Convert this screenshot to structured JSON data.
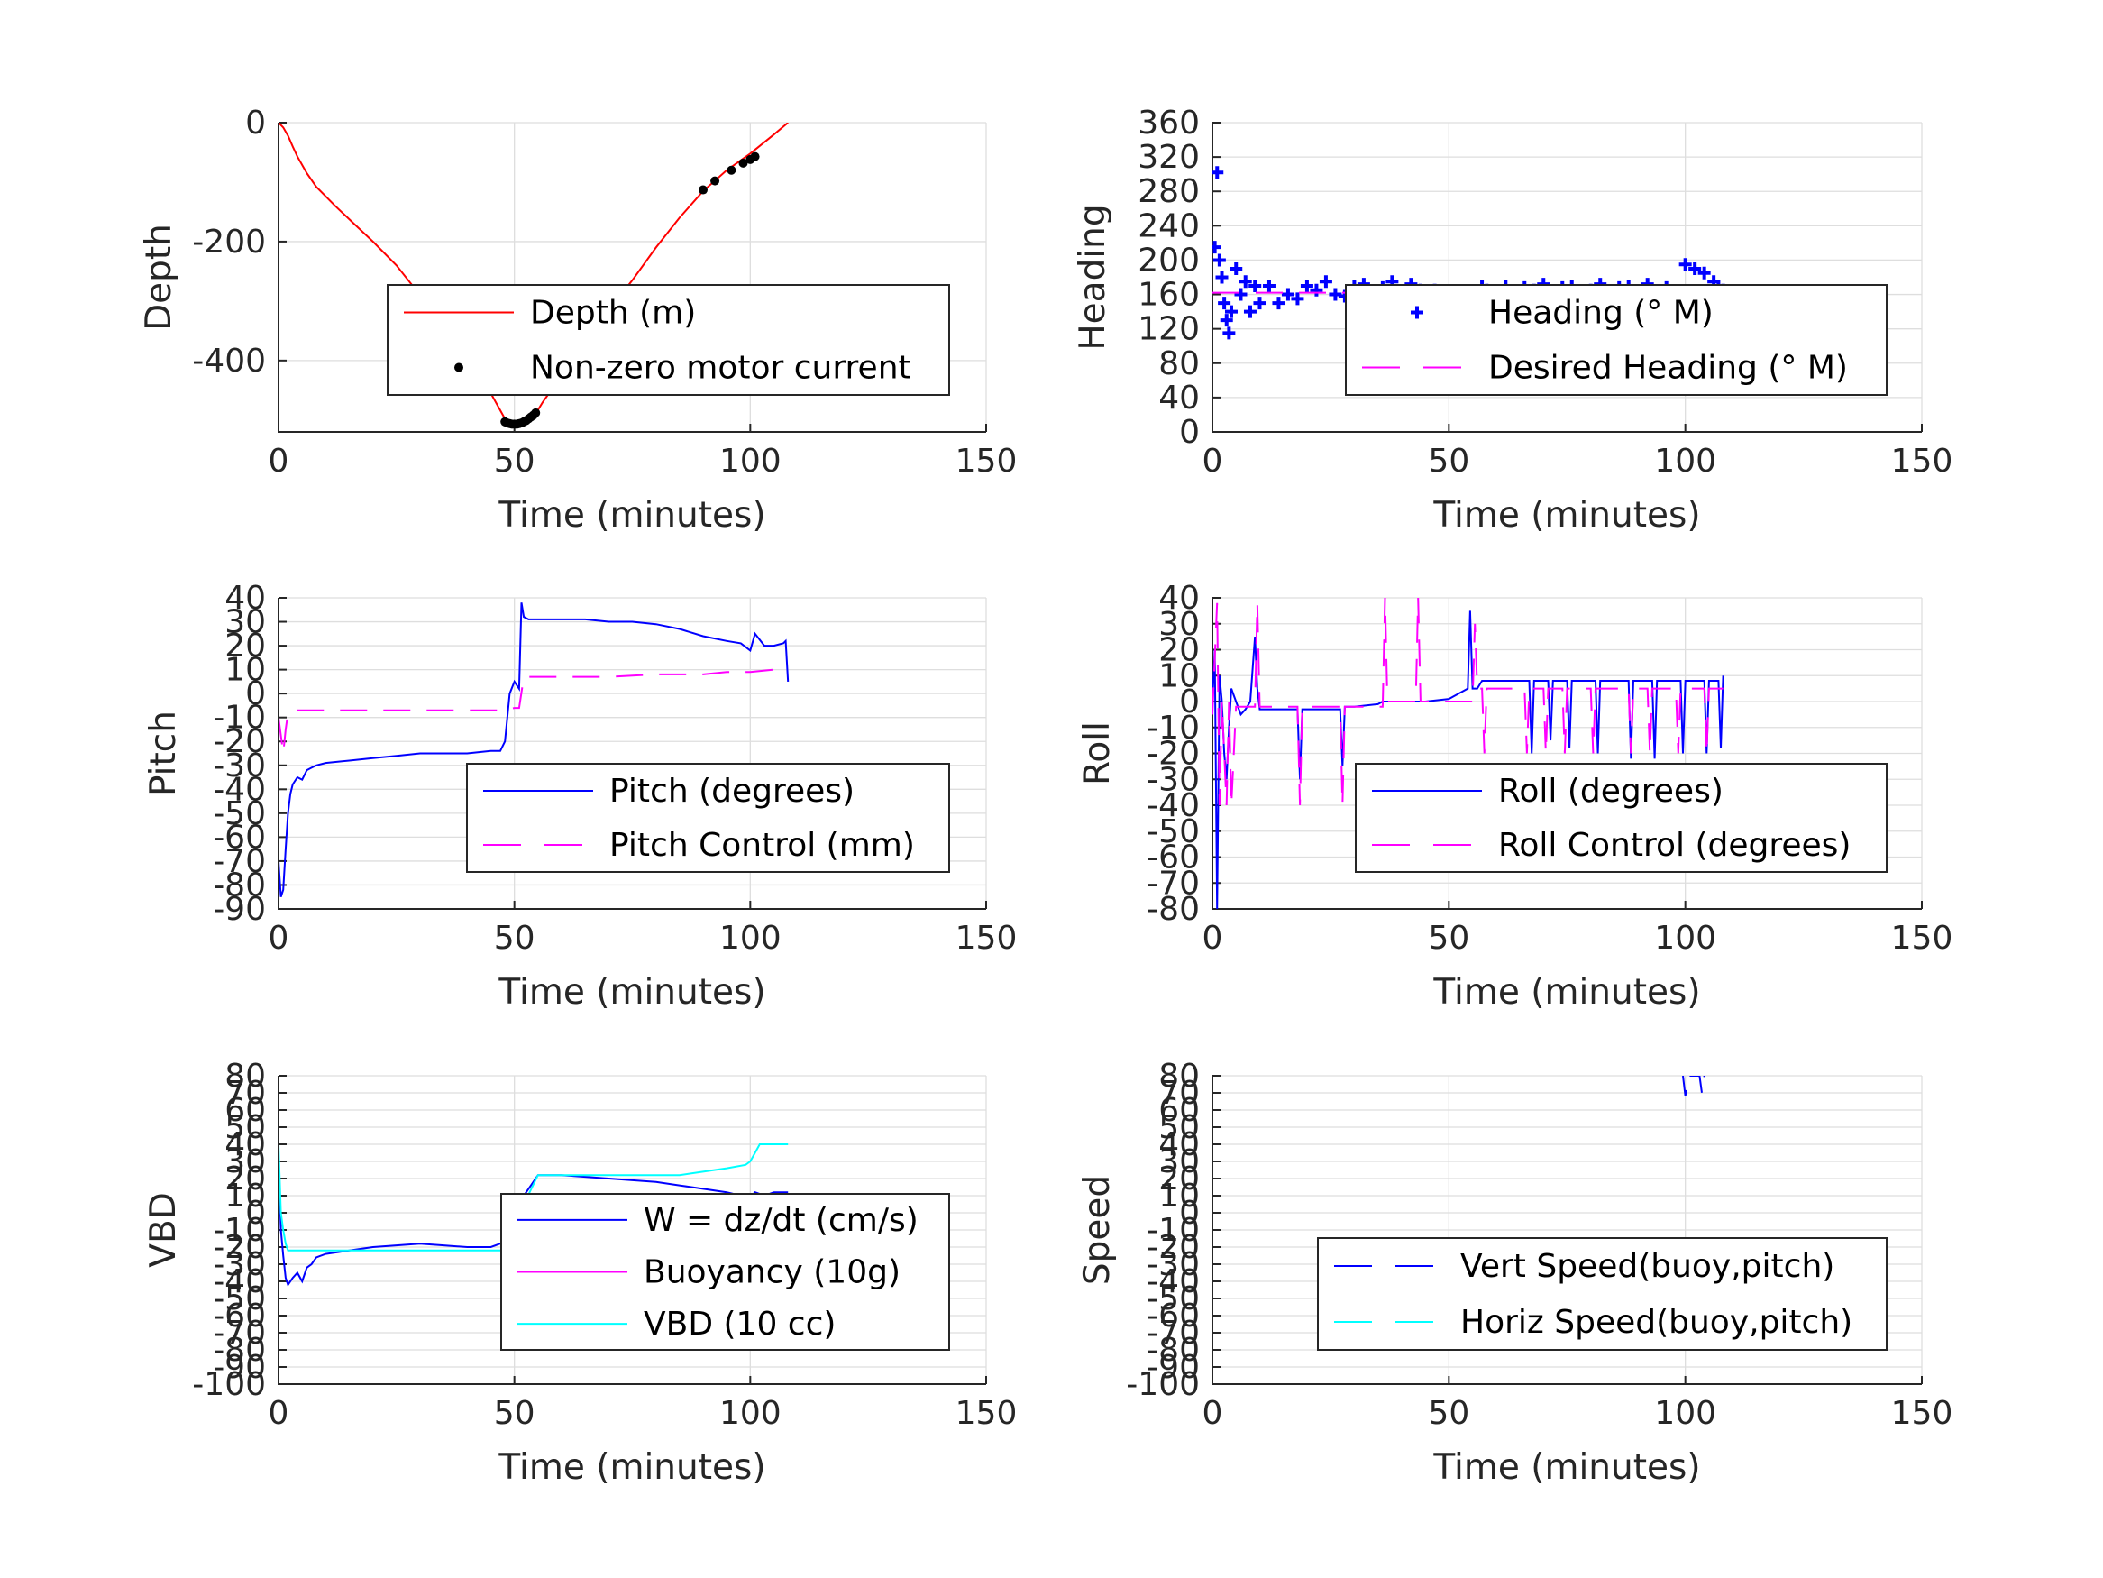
{
  "chart_data": [
    {
      "id": "depth",
      "type": "line",
      "xlabel": "Time (minutes)",
      "ylabel": "Depth",
      "xlim": [
        0,
        150
      ],
      "ylim": [
        -520,
        0
      ],
      "xticks": [
        0,
        50,
        100,
        150
      ],
      "yticks": [
        -400,
        -200,
        0
      ],
      "grid": true,
      "legend_position": "middle-right",
      "series": [
        {
          "name": "Depth (m)",
          "color": "#ff0000",
          "style": "solid",
          "x": [
            0,
            1,
            2,
            3,
            4,
            6,
            8,
            12,
            16,
            20,
            25,
            30,
            35,
            40,
            45,
            48,
            50,
            52,
            54,
            56,
            60,
            65,
            70,
            75,
            80,
            85,
            90,
            95,
            100,
            105,
            108
          ],
          "y": [
            0,
            -8,
            -22,
            -40,
            -57,
            -85,
            -108,
            -140,
            -170,
            -200,
            -240,
            -290,
            -345,
            -400,
            -455,
            -498,
            -507,
            -505,
            -496,
            -470,
            -425,
            -370,
            -315,
            -265,
            -210,
            -160,
            -115,
            -80,
            -52,
            -20,
            0
          ]
        },
        {
          "name": "Non-zero motor current",
          "color": "#000000",
          "style": "markers",
          "x": [
            38.5,
            48,
            48.5,
            49,
            49.5,
            50,
            50.5,
            51,
            51.5,
            52,
            52.5,
            53,
            53.5,
            54,
            54.5,
            90,
            92.5,
            96,
            98.5,
            100,
            101
          ],
          "y": [
            -403,
            -503,
            -505,
            -506,
            -507,
            -507,
            -507,
            -506,
            -505,
            -503,
            -501,
            -498,
            -495,
            -492,
            -488,
            -113,
            -98,
            -80,
            -68,
            -62,
            -57
          ]
        }
      ]
    },
    {
      "id": "heading",
      "type": "scatter",
      "xlabel": "Time (minutes)",
      "ylabel": "Heading",
      "xlim": [
        0,
        150
      ],
      "ylim": [
        0,
        360
      ],
      "xticks": [
        0,
        50,
        100,
        150
      ],
      "yticks": [
        0,
        40,
        80,
        120,
        160,
        200,
        240,
        280,
        320,
        360
      ],
      "grid": true,
      "legend_position": "middle-right",
      "series": [
        {
          "name": "Heading (° M)",
          "color": "#0000ff",
          "style": "plus-markers",
          "x": [
            1,
            0.5,
            1.5,
            2,
            2.5,
            3,
            3.5,
            4,
            5,
            6,
            7,
            8,
            9,
            10,
            12,
            14,
            16,
            18,
            20,
            22,
            24,
            26,
            28,
            30,
            32,
            34,
            36,
            38,
            40,
            42,
            44,
            46,
            47,
            48,
            49,
            50,
            51,
            52,
            53,
            54,
            55,
            56,
            57,
            58,
            60,
            62,
            64,
            66,
            68,
            70,
            72,
            74,
            76,
            78,
            80,
            82,
            84,
            86,
            88,
            90,
            92,
            94,
            96,
            98,
            100,
            101,
            102,
            103,
            104,
            105,
            106,
            107,
            108
          ],
          "y": [
            302,
            215,
            200,
            180,
            150,
            130,
            115,
            140,
            190,
            160,
            175,
            140,
            170,
            150,
            170,
            150,
            160,
            155,
            170,
            165,
            175,
            160,
            158,
            170,
            172,
            160,
            168,
            175,
            160,
            172,
            165,
            160,
            165,
            158,
            140,
            115,
            98,
            100,
            110,
            125,
            150,
            160,
            170,
            165,
            160,
            170,
            162,
            168,
            165,
            172,
            160,
            168,
            170,
            162,
            165,
            172,
            160,
            168,
            170,
            162,
            172,
            160,
            168,
            150,
            195,
            160,
            190,
            145,
            185,
            150,
            175,
            170,
            165
          ]
        },
        {
          "name": "Desired Heading (° M)",
          "color": "#ff00ff",
          "style": "dashed",
          "x": [
            0,
            108
          ],
          "y": [
            162,
            162
          ]
        }
      ]
    },
    {
      "id": "pitch",
      "type": "line",
      "xlabel": "Time (minutes)",
      "ylabel": "Pitch",
      "xlim": [
        0,
        150
      ],
      "ylim": [
        -90,
        40
      ],
      "xticks": [
        0,
        50,
        100,
        150
      ],
      "yticks": [
        -90,
        -80,
        -70,
        -60,
        -50,
        -40,
        -30,
        -20,
        -10,
        0,
        10,
        20,
        30,
        40
      ],
      "grid": true,
      "legend_position": "lower-right",
      "series": [
        {
          "name": "Pitch (degrees)",
          "color": "#0000ff",
          "style": "solid",
          "x": [
            0,
            0.5,
            1,
            1.5,
            2,
            2.5,
            3,
            4,
            5,
            6,
            7,
            8,
            10,
            15,
            20,
            25,
            30,
            35,
            40,
            45,
            47,
            48,
            49,
            50,
            51,
            51.5,
            52,
            53,
            55,
            60,
            65,
            70,
            75,
            80,
            85,
            90,
            95,
            98,
            100,
            101,
            103,
            105,
            107,
            107.5,
            108
          ],
          "y": [
            -70,
            -85,
            -82,
            -65,
            -50,
            -42,
            -38,
            -35,
            -36,
            -32,
            -31,
            -30,
            -29,
            -28,
            -27,
            -26,
            -25,
            -25,
            -25,
            -24,
            -24,
            -20,
            0,
            5,
            2,
            38,
            32,
            31,
            31,
            31,
            31,
            30,
            30,
            29,
            27,
            24,
            22,
            21,
            18,
            25,
            20,
            20,
            21,
            22,
            5
          ]
        },
        {
          "name": "Pitch Control (mm)",
          "color": "#ff00ff",
          "style": "dashed",
          "x": [
            0,
            1,
            1.5,
            2,
            3,
            5,
            10,
            20,
            30,
            40,
            48,
            50,
            51,
            52,
            55,
            60,
            70,
            80,
            90,
            95,
            100,
            105,
            108
          ],
          "y": [
            -10,
            -25,
            -15,
            -8,
            -7,
            -7,
            -7,
            -7,
            -7,
            -7,
            -7,
            -6,
            -6,
            7,
            7,
            7,
            7,
            8,
            8,
            9,
            9,
            10,
            10
          ]
        }
      ]
    },
    {
      "id": "roll",
      "type": "line",
      "xlabel": "Time (minutes)",
      "ylabel": "Roll",
      "xlim": [
        0,
        150
      ],
      "ylim": [
        -80,
        40
      ],
      "xticks": [
        0,
        50,
        100,
        150
      ],
      "yticks": [
        -80,
        -70,
        -60,
        -50,
        -40,
        -30,
        -20,
        -10,
        0,
        10,
        20,
        30,
        40
      ],
      "grid": true,
      "legend_position": "lower-right",
      "series": [
        {
          "name": "Roll (degrees)",
          "color": "#0000ff",
          "style": "solid",
          "x": [
            0,
            0.5,
            1,
            1.5,
            2,
            2.5,
            3,
            3.5,
            4,
            5,
            6,
            7,
            8,
            9,
            9.5,
            10,
            11,
            15,
            18,
            18.5,
            19,
            20,
            25,
            27,
            27.5,
            28,
            30,
            35,
            36,
            36.5,
            37,
            40,
            43,
            43.5,
            44,
            45,
            50,
            52,
            54,
            54.5,
            55,
            56,
            57,
            57.5,
            58,
            60,
            65,
            67,
            67.5,
            68,
            70,
            71,
            71.5,
            72,
            74,
            75,
            75.5,
            76,
            80,
            81,
            81.5,
            82,
            87,
            88,
            88.5,
            89,
            92,
            93,
            93.5,
            94,
            98,
            99,
            99.5,
            100,
            103,
            104,
            104.5,
            105,
            107,
            107.5,
            108
          ],
          "y": [
            0,
            20,
            -80,
            10,
            0,
            -20,
            -30,
            -10,
            5,
            0,
            -5,
            -3,
            0,
            25,
            5,
            -3,
            -3,
            -3,
            -3,
            -30,
            -3,
            -3,
            -3,
            -3,
            -25,
            -2,
            -2,
            -1,
            0,
            0,
            0,
            0,
            0,
            0,
            0,
            0,
            1,
            3,
            5,
            35,
            5,
            5,
            8,
            8,
            8,
            8,
            8,
            8,
            -20,
            8,
            8,
            8,
            -15,
            8,
            8,
            8,
            -18,
            8,
            8,
            8,
            -20,
            8,
            8,
            8,
            -22,
            8,
            8,
            8,
            -22,
            8,
            8,
            8,
            -20,
            8,
            8,
            8,
            -20,
            8,
            8,
            -18,
            10
          ]
        },
        {
          "name": "Roll Control (degrees)",
          "color": "#ff00ff",
          "style": "dashed",
          "x": [
            0,
            1,
            1.5,
            2,
            3,
            3.5,
            4,
            5,
            6,
            9,
            9.5,
            10,
            11,
            18,
            18.5,
            19,
            27,
            27.5,
            28,
            36,
            36.5,
            37,
            43,
            43.5,
            44,
            55,
            55.5,
            56,
            57,
            57.5,
            58,
            66,
            66.5,
            67,
            70,
            70.5,
            71,
            74,
            74.5,
            75,
            80,
            80.5,
            81,
            88,
            88.5,
            89,
            92,
            92.5,
            93,
            98,
            98.5,
            99,
            104,
            104.5,
            105,
            108
          ],
          "y": [
            -5,
            38,
            -40,
            0,
            -40,
            0,
            -40,
            -2,
            -2,
            -2,
            38,
            -2,
            -2,
            -2,
            -40,
            -2,
            -2,
            -40,
            -2,
            -2,
            40,
            0,
            0,
            40,
            0,
            0,
            30,
            5,
            5,
            -20,
            5,
            5,
            -20,
            5,
            5,
            -20,
            5,
            5,
            -20,
            5,
            5,
            -20,
            5,
            5,
            -20,
            5,
            5,
            -20,
            5,
            5,
            -20,
            5,
            5,
            -20,
            5,
            5
          ]
        }
      ]
    },
    {
      "id": "vbd",
      "type": "line",
      "xlabel": "Time (minutes)",
      "ylabel": "VBD",
      "xlim": [
        0,
        150
      ],
      "ylim": [
        -100,
        80
      ],
      "xticks": [
        0,
        50,
        100,
        150
      ],
      "yticks": [
        -100,
        -90,
        -80,
        -70,
        -60,
        -50,
        -40,
        -30,
        -20,
        -10,
        0,
        10,
        20,
        30,
        40,
        50,
        60,
        70,
        80
      ],
      "grid": true,
      "legend_position": "middle-right",
      "series": [
        {
          "name": "W = dz/dt (cm/s)",
          "color": "#0000ff",
          "style": "solid",
          "x": [
            0,
            0.5,
            1,
            1.5,
            2,
            2.5,
            3,
            4,
            5,
            6,
            7,
            8,
            10,
            15,
            20,
            25,
            30,
            35,
            40,
            45,
            47,
            48,
            50,
            52,
            54,
            55,
            60,
            65,
            70,
            75,
            80,
            85,
            90,
            95,
            98,
            100,
            101,
            103,
            105,
            108
          ],
          "y": [
            30,
            -10,
            -25,
            -38,
            -42,
            -40,
            -38,
            -35,
            -40,
            -32,
            -30,
            -26,
            -24,
            -22,
            -20,
            -19,
            -18,
            -19,
            -20,
            -20,
            -18,
            -15,
            0,
            10,
            18,
            22,
            22,
            21,
            20,
            19,
            18,
            16,
            14,
            12,
            10,
            9,
            12,
            10,
            12,
            12
          ]
        },
        {
          "name": "Buoyancy (10g)",
          "color": "#ff00ff",
          "style": "solid",
          "x": [],
          "y": []
        },
        {
          "name": "VBD (10 cc)",
          "color": "#00ffff",
          "style": "solid",
          "x": [
            0,
            0.5,
            1,
            1.5,
            2,
            3,
            5,
            10,
            20,
            30,
            40,
            47,
            48,
            50,
            52,
            55,
            60,
            70,
            80,
            85,
            90,
            95,
            99,
            100,
            101,
            102,
            105,
            108
          ],
          "y": [
            40,
            0,
            -10,
            -18,
            -22,
            -22,
            -22,
            -22,
            -22,
            -22,
            -22,
            -22,
            -22,
            -10,
            5,
            22,
            22,
            22,
            22,
            22,
            24,
            26,
            28,
            30,
            35,
            40,
            40,
            40
          ]
        }
      ]
    },
    {
      "id": "speed",
      "type": "line",
      "xlabel": "Time (minutes)",
      "ylabel": "Speed",
      "xlim": [
        0,
        150
      ],
      "ylim": [
        -100,
        80
      ],
      "xticks": [
        0,
        50,
        100,
        150
      ],
      "yticks": [
        -100,
        -90,
        -80,
        -70,
        -60,
        -50,
        -40,
        -30,
        -20,
        -10,
        0,
        10,
        20,
        30,
        40,
        50,
        60,
        70,
        80
      ],
      "grid": true,
      "legend_position": "lower-right",
      "series": [
        {
          "name": "Vert Speed(buoy,pitch)",
          "color": "#0000ff",
          "style": "dashed",
          "x": [
            99.5,
            100,
            100.5,
            103,
            103.5,
            104
          ],
          "y": [
            80,
            68,
            80,
            80,
            70,
            80
          ]
        },
        {
          "name": "Horiz Speed(buoy,pitch)",
          "color": "#00ffff",
          "style": "dashed",
          "x": [],
          "y": []
        }
      ]
    }
  ]
}
